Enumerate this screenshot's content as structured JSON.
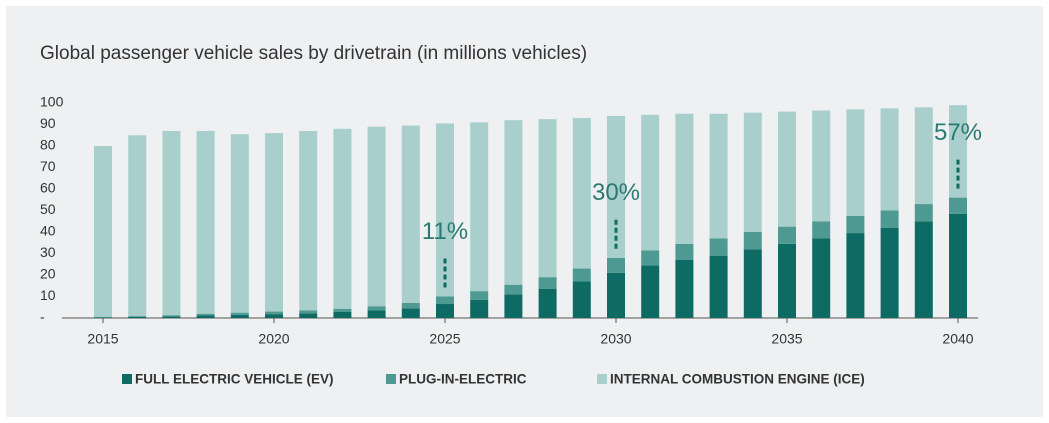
{
  "chart_data": {
    "type": "stacked_bar",
    "title": "Global passenger vehicle sales by drivetrain (in millions vehicles)",
    "categories": [
      "2015",
      null,
      null,
      null,
      null,
      "2020",
      null,
      null,
      null,
      null,
      "2025",
      null,
      null,
      null,
      null,
      "2030",
      null,
      null,
      null,
      null,
      "2035",
      null,
      null,
      null,
      null,
      "2040"
    ],
    "series": [
      {
        "name": "FULL ELECTRIC VEHICLE (EV)",
        "color": "#0e6b63",
        "values": [
          0.3,
          0.5,
          0.8,
          1.2,
          1.5,
          1.8,
          2.2,
          2.8,
          3.5,
          4.5,
          6.5,
          8.5,
          11,
          13.5,
          17,
          21,
          24.5,
          27,
          29,
          32,
          34.5,
          37,
          39.5,
          42,
          45,
          48.5
        ]
      },
      {
        "name": "PLUG-IN-ELECTRIC",
        "color": "#4e9a92",
        "values": [
          0.3,
          0.4,
          0.5,
          0.8,
          1,
          1.2,
          1.3,
          1.5,
          2,
          2.5,
          3.5,
          4,
          4.5,
          5.5,
          6,
          7,
          7,
          7.5,
          8,
          8,
          8,
          8,
          8,
          8,
          8,
          7.5
        ]
      },
      {
        "name": "INTERNAL COMBUSTION ENGINE (ICE)",
        "color": "#a9cfcc",
        "values": [
          79.4,
          84.1,
          85.7,
          85,
          83,
          83,
          83.5,
          83.7,
          83.5,
          82.5,
          80.5,
          78.5,
          76.5,
          73.5,
          70,
          66,
          63,
          60.5,
          58,
          55.5,
          53.5,
          51.5,
          49.5,
          47.5,
          45,
          43
        ]
      }
    ],
    "ylim": [
      0,
      100
    ],
    "yticks": [
      {
        "value": 0,
        "label": "-"
      },
      10,
      20,
      30,
      40,
      50,
      60,
      70,
      80,
      90,
      100
    ],
    "annotations": [
      {
        "text": "11%",
        "category": "2025"
      },
      {
        "text": "30%",
        "category": "2030"
      },
      {
        "text": "57%",
        "category": "2040"
      }
    ],
    "legend": "bottom"
  }
}
